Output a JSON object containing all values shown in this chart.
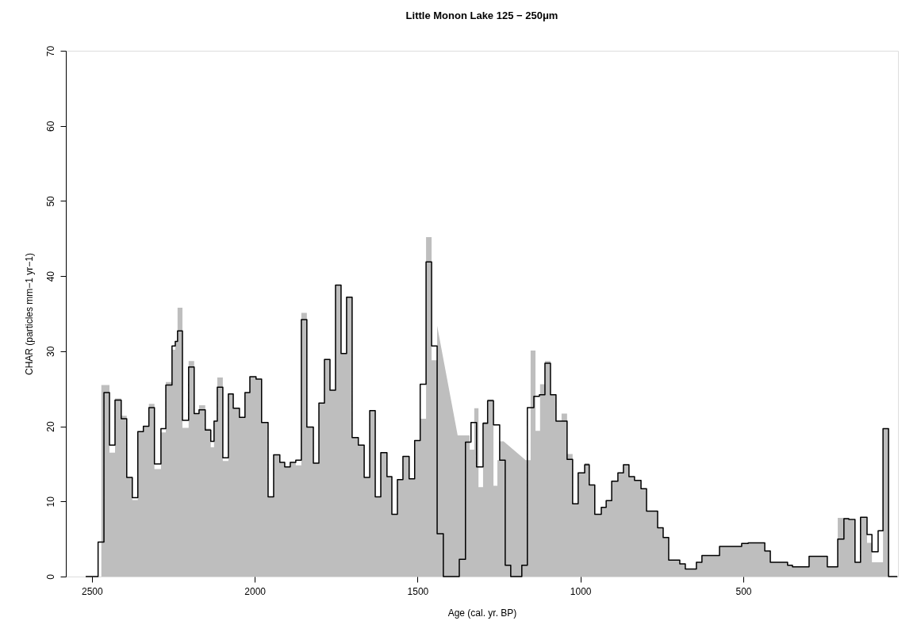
{
  "chart_data": {
    "type": "step",
    "title": "Little Monon Lake 125 − 250μm",
    "xlabel": "Age (cal. yr. BP)",
    "ylabel": "CHAR (particles mm−1 yr−1)",
    "xlim": [
      2580,
      25
    ],
    "xticks": [
      2500,
      2000,
      1500,
      1000,
      500
    ],
    "ylim": [
      0,
      70
    ],
    "yticks": [
      0,
      10,
      20,
      30,
      40,
      50,
      60,
      70
    ],
    "grid": false,
    "marker": "none",
    "line_style": "solid",
    "series": [
      {
        "type": "area",
        "color": "#bebebe",
        "x": [
          2471,
          2446,
          2446,
          2429,
          2429,
          2410,
          2410,
          2393,
          2393,
          2376,
          2376,
          2359,
          2359,
          2342,
          2342,
          2325,
          2325,
          2308,
          2308,
          2288,
          2288,
          2273,
          2273,
          2254,
          2254,
          2244,
          2244,
          2237,
          2237,
          2222,
          2222,
          2203,
          2203,
          2186,
          2186,
          2171,
          2171,
          2152,
          2152,
          2135,
          2135,
          2125,
          2125,
          2115,
          2115,
          2098,
          2098,
          2081,
          2081,
          2066,
          2066,
          2047,
          2047,
          2030,
          2030,
          2015,
          2015,
          1996,
          1996,
          1979,
          1979,
          1959,
          1959,
          1942,
          1942,
          1923,
          1923,
          1908,
          1908,
          1891,
          1891,
          1874,
          1874,
          1857,
          1857,
          1840,
          1840,
          1820,
          1820,
          1803,
          1803,
          1786,
          1786,
          1769,
          1769,
          1752,
          1752,
          1735,
          1735,
          1718,
          1718,
          1701,
          1701,
          1682,
          1682,
          1664,
          1664,
          1647,
          1647,
          1630,
          1630,
          1613,
          1613,
          1594,
          1594,
          1579,
          1579,
          1562,
          1562,
          1545,
          1545,
          1526,
          1526,
          1509,
          1509,
          1492,
          1492,
          1474,
          1474,
          1457,
          1457,
          1440,
          1440,
          1377,
          1340,
          1340,
          1326,
          1326,
          1313,
          1313,
          1299,
          1299,
          1285,
          1285,
          1267,
          1267,
          1255,
          1255,
          1248,
          1248,
          1236,
          1168,
          1153,
          1153,
          1138,
          1138,
          1124,
          1124,
          1109,
          1109,
          1092,
          1092,
          1075,
          1075,
          1058,
          1058,
          1041,
          1041,
          1024,
          1024,
          1007,
          1007,
          987,
          987,
          973,
          973,
          956,
          956,
          936,
          936,
          921,
          921,
          904,
          904,
          885,
          885,
          868,
          868,
          851,
          851,
          834,
          834,
          814,
          814,
          797,
          797,
          763,
          763,
          746,
          746,
          729,
          729,
          695,
          695,
          678,
          678,
          644,
          644,
          627,
          627,
          573,
          573,
          505,
          505,
          485,
          485,
          434,
          434,
          417,
          417,
          364,
          364,
          349,
          349,
          298,
          298,
          242,
          242,
          210,
          210,
          176,
          176,
          157,
          157,
          140,
          140,
          120,
          120,
          105,
          105,
          71,
          71,
          54
        ],
        "values": [
          25.5,
          25.5,
          16.5,
          16.5,
          23.7,
          23.7,
          21.4,
          21.4,
          13.2,
          13.2,
          10.2,
          10.2,
          19.3,
          19.3,
          20.0,
          20.0,
          23.0,
          23.0,
          14.3,
          14.3,
          19.2,
          19.2,
          25.9,
          25.9,
          30.2,
          30.2,
          31.3,
          31.3,
          35.8,
          35.8,
          19.8,
          19.8,
          28.7,
          28.7,
          21.7,
          21.7,
          22.8,
          22.8,
          19.7,
          19.7,
          17.2,
          17.2,
          20.7,
          20.7,
          26.5,
          26.5,
          15.4,
          15.4,
          24.3,
          24.3,
          22.4,
          22.4,
          21.2,
          21.2,
          24.5,
          24.5,
          26.6,
          26.6,
          26.3,
          26.3,
          20.5,
          20.5,
          10.6,
          10.6,
          16.2,
          16.2,
          15.2,
          15.2,
          14.6,
          14.6,
          15.2,
          15.2,
          14.8,
          14.8,
          35.1,
          35.1,
          19.9,
          19.9,
          15.1,
          15.1,
          23.1,
          23.1,
          28.9,
          28.9,
          24.8,
          24.8,
          38.8,
          38.8,
          29.7,
          29.7,
          37.2,
          37.2,
          18.5,
          18.5,
          17.5,
          17.5,
          13.2,
          13.2,
          22.1,
          22.1,
          10.6,
          10.6,
          16.5,
          16.5,
          13.3,
          13.3,
          8.3,
          8.3,
          12.9,
          12.9,
          16.0,
          16.0,
          13.0,
          13.0,
          18.1,
          18.1,
          21.0,
          21.0,
          45.2,
          45.2,
          28.8,
          28.8,
          33.4,
          18.8,
          18.8,
          16.9,
          16.9,
          22.4,
          22.4,
          11.9,
          11.9,
          20.6,
          20.6,
          23.6,
          23.6,
          12.1,
          12.1,
          15.5,
          15.5,
          18.0,
          18.0,
          15.5,
          15.5,
          30.1,
          30.1,
          19.4,
          19.4,
          25.6,
          25.6,
          28.7,
          28.7,
          24.2,
          24.2,
          20.7,
          20.7,
          21.7,
          21.7,
          16.3,
          16.3,
          9.7,
          9.7,
          13.8,
          13.8,
          15.1,
          15.1,
          12.2,
          12.2,
          8.3,
          8.3,
          9.2,
          9.2,
          10.1,
          10.1,
          12.7,
          12.7,
          13.8,
          13.8,
          14.9,
          14.9,
          13.3,
          13.3,
          12.8,
          12.8,
          11.7,
          11.7,
          8.7,
          8.7,
          6.5,
          6.5,
          5.2,
          5.2,
          2.2,
          2.2,
          1.7,
          1.7,
          1.0,
          1.0,
          1.9,
          1.9,
          2.8,
          2.8,
          4.0,
          4.0,
          4.4,
          4.4,
          4.5,
          4.5,
          3.4,
          3.4,
          1.9,
          1.9,
          1.5,
          1.5,
          1.3,
          1.3,
          2.7,
          2.7,
          1.3,
          1.3,
          7.8,
          7.8,
          7.5,
          7.5,
          1.9,
          1.9,
          7.9,
          7.9,
          4.5,
          4.5,
          1.9,
          1.9,
          19.7,
          19.7
        ]
      },
      {
        "color": "#000000",
        "x": [
          2519,
          2481,
          2463,
          2446,
          2429,
          2410,
          2393,
          2376,
          2359,
          2342,
          2325,
          2308,
          2288,
          2273,
          2254,
          2244,
          2237,
          2222,
          2203,
          2186,
          2171,
          2152,
          2135,
          2125,
          2115,
          2098,
          2081,
          2066,
          2047,
          2030,
          2015,
          1996,
          1979,
          1959,
          1942,
          1923,
          1908,
          1891,
          1874,
          1857,
          1840,
          1820,
          1803,
          1786,
          1769,
          1752,
          1735,
          1718,
          1701,
          1682,
          1664,
          1647,
          1630,
          1613,
          1594,
          1579,
          1562,
          1545,
          1526,
          1509,
          1492,
          1474,
          1457,
          1440,
          1421,
          1372,
          1353,
          1336,
          1319,
          1299,
          1285,
          1267,
          1248,
          1231,
          1214,
          1180,
          1163,
          1143,
          1126,
          1109,
          1092,
          1075,
          1041,
          1024,
          1007,
          987,
          973,
          956,
          936,
          921,
          904,
          885,
          868,
          851,
          834,
          814,
          797,
          763,
          746,
          729,
          695,
          678,
          644,
          627,
          573,
          505,
          485,
          434,
          417,
          364,
          349,
          298,
          242,
          210,
          191,
          176,
          157,
          140,
          120,
          105,
          86,
          71,
          54,
          27
        ],
        "values": [
          0,
          4.6,
          24.5,
          17.5,
          23.5,
          21.0,
          13.2,
          10.5,
          19.3,
          20.0,
          22.5,
          15.0,
          19.7,
          25.5,
          30.7,
          31.3,
          32.7,
          20.8,
          27.9,
          21.7,
          22.2,
          19.5,
          18.0,
          20.7,
          25.2,
          15.8,
          24.3,
          22.4,
          21.2,
          24.5,
          26.6,
          26.3,
          20.5,
          10.6,
          16.2,
          15.2,
          14.6,
          15.2,
          15.5,
          34.2,
          19.9,
          15.1,
          23.1,
          28.9,
          24.8,
          38.8,
          29.7,
          37.2,
          18.5,
          17.5,
          13.2,
          22.1,
          10.6,
          16.5,
          13.3,
          8.3,
          12.9,
          16.0,
          13.0,
          18.1,
          25.6,
          41.9,
          30.7,
          5.7,
          0,
          2.3,
          17.9,
          20.5,
          14.6,
          20.4,
          23.4,
          20.2,
          15.5,
          1.5,
          0,
          1.5,
          22.5,
          24.0,
          24.2,
          28.4,
          24.2,
          20.7,
          15.6,
          9.7,
          13.8,
          14.9,
          12.2,
          8.3,
          9.2,
          10.1,
          12.7,
          13.8,
          14.9,
          13.3,
          12.8,
          11.7,
          8.7,
          6.5,
          5.2,
          2.2,
          1.7,
          1.0,
          1.9,
          2.8,
          4.0,
          4.4,
          4.5,
          3.4,
          1.9,
          1.5,
          1.3,
          2.7,
          1.3,
          5.0,
          7.7,
          7.6,
          1.9,
          7.9,
          5.6,
          3.3,
          6.1,
          19.7,
          0,
          0
        ]
      }
    ]
  }
}
